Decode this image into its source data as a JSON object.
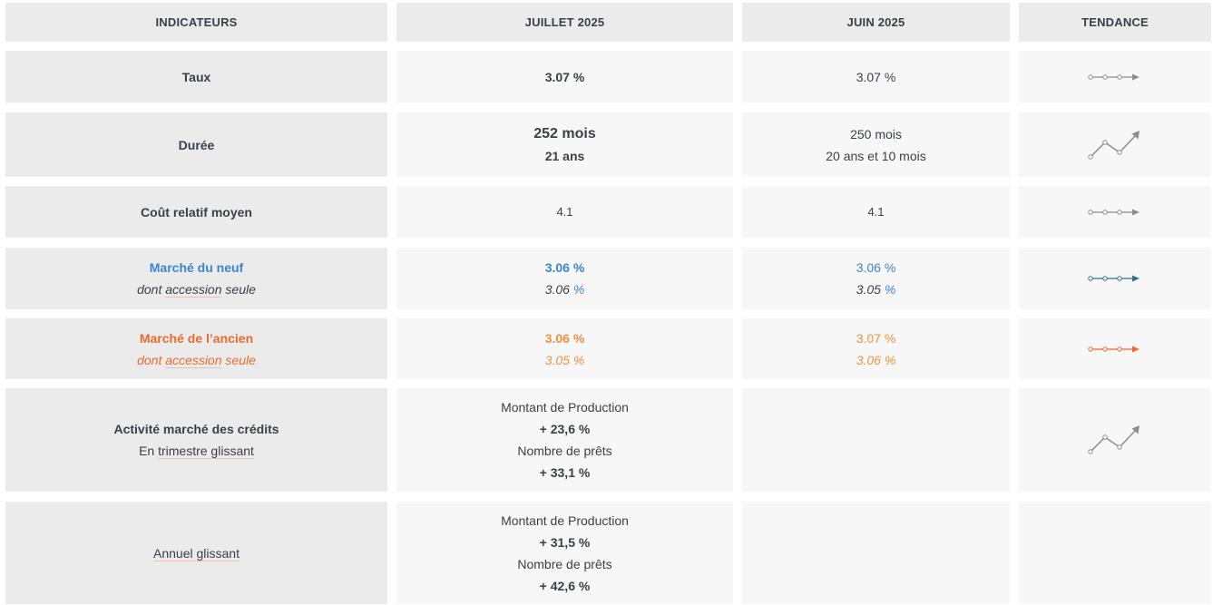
{
  "header": {
    "col1": "INDICATEURS",
    "col2": "JUILLET 2025",
    "col3": "JUIN 2025",
    "col4": "TENDANCE"
  },
  "rows": {
    "taux": {
      "label": "Taux",
      "current": "3.07 %",
      "previous": "3.07 %",
      "trend": "stable"
    },
    "duree": {
      "label": "Durée",
      "current_main": "252 mois",
      "current_sub": "21 ans",
      "previous_main": "250 mois",
      "previous_sub": "20 ans et 10 mois",
      "trend": "hausse"
    },
    "cout": {
      "label": "Coût relatif moyen",
      "current": "4.1",
      "previous": "4.1",
      "trend": "stable"
    },
    "neuf": {
      "label": "Marché du neuf",
      "sublabel_pre": "dont ",
      "sublabel_ul": "accession",
      "sublabel_post": " seule",
      "current_main": "3.06 %",
      "current_sub_num": "3.06 ",
      "current_sub_unit": "%",
      "previous_main": "3.06 %",
      "previous_sub_num": "3.05 ",
      "previous_sub_unit": "%",
      "trend": "stable",
      "color": "#3a85d0",
      "trend_color": "#2f6e8e"
    },
    "ancien": {
      "label": "Marché de l’ancien",
      "sublabel_pre": "dont ",
      "sublabel_ul": "accession",
      "sublabel_post": " seule",
      "current_main": "3.06 %",
      "current_sub": "3.05 %",
      "previous_main": "3.07 %",
      "previous_sub": "3.06 %",
      "trend": "stable",
      "color": "#ea6a2e",
      "value_color": "#f0913e"
    },
    "activite": {
      "label": "Activité marché des crédits",
      "sublabel_pre": "En ",
      "sublabel_ul": "trimestre glissant",
      "production_label": "Montant de Production",
      "production_value": "+ 23,6 %",
      "prets_label": "Nombre de prêts",
      "prets_value": "+ 33,1 %",
      "trend": "hausse"
    },
    "annuel": {
      "label": "Annuel glissant",
      "production_label": "Montant de Production",
      "production_value": "+ 31,5 %",
      "prets_label": "Nombre de prêts",
      "prets_value": "+ 42,6 %"
    }
  },
  "colors": {
    "label_bg": "#ebebeb",
    "value_bg": "#f7f7f7",
    "text": "#3a3f48",
    "trend_gray": "#8c8c8c"
  }
}
